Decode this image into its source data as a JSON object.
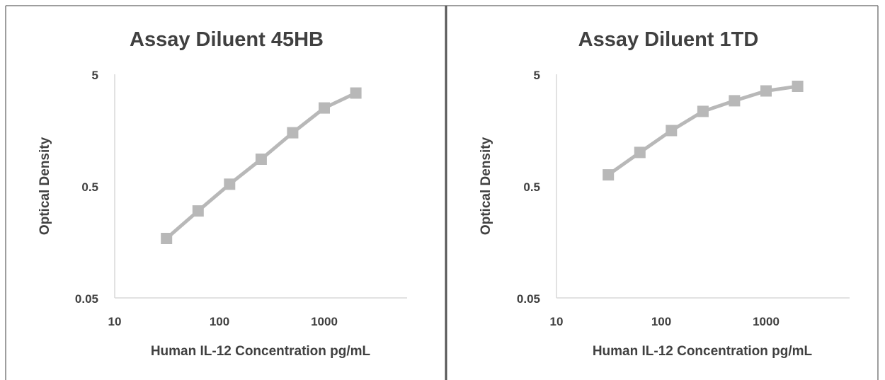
{
  "chart_data": [
    {
      "type": "line",
      "title": "Assay Diluent 45HB",
      "xlabel": "Human IL-12 Concentration pg/mL",
      "ylabel": "Optical Density",
      "xscale": "log",
      "yscale": "log",
      "xlim": [
        10,
        5000
      ],
      "ylim": [
        0.05,
        5
      ],
      "xticks": [
        "10",
        "100",
        "1000"
      ],
      "yticks": [
        "0.05",
        "0.5",
        "5"
      ],
      "grid": false,
      "legend": "none",
      "marker": "square",
      "color": "#b8b8b8",
      "series": [
        {
          "x": [
            31.25,
            62.5,
            125,
            250,
            500,
            1000,
            2000
          ],
          "y": [
            0.17,
            0.3,
            0.52,
            0.87,
            1.5,
            2.5,
            3.4
          ]
        }
      ]
    },
    {
      "type": "line",
      "title": "Assay Diluent 1TD",
      "xlabel": "Human IL-12 Concentration pg/mL",
      "ylabel": "Optical Density",
      "xscale": "log",
      "yscale": "log",
      "xlim": [
        10,
        5000
      ],
      "ylim": [
        0.05,
        5
      ],
      "xticks": [
        "10",
        "100",
        "1000"
      ],
      "yticks": [
        "0.05",
        "0.5",
        "5"
      ],
      "grid": false,
      "legend": "none",
      "marker": "square",
      "color": "#b8b8b8",
      "series": [
        {
          "x": [
            31.25,
            62.5,
            125,
            250,
            500,
            1000,
            2000
          ],
          "y": [
            0.63,
            1.0,
            1.57,
            2.33,
            2.9,
            3.55,
            3.9
          ]
        }
      ]
    }
  ]
}
